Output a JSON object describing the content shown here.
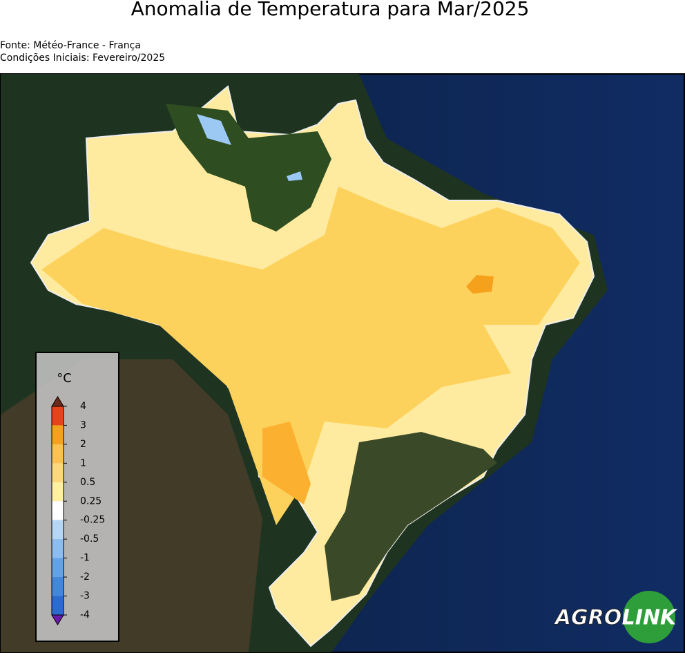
{
  "title": "Anomalia de Temperatura para Mar/2025",
  "source": "Fonte: Météo-France - França",
  "initial_conditions": "Condições Iniciais: Fevereiro/2025",
  "legend": {
    "unit": "°C",
    "ticks": [
      4,
      3,
      2,
      1,
      0.5,
      0.25,
      -0.25,
      -0.5,
      -1,
      -2,
      -3,
      -4
    ],
    "colors": [
      "#e8421a",
      "#f6a11c",
      "#fbc24e",
      "#fdd878",
      "#fff0a0",
      "#ffffff",
      "#b6d6f6",
      "#8cbdf0",
      "#64a2e8",
      "#4287de",
      "#2a6ad2"
    ],
    "over_color": "#6b2a1a",
    "under_color": "#6a1aa8"
  },
  "logo": {
    "left": "AGRO",
    "right": "LINK"
  }
}
